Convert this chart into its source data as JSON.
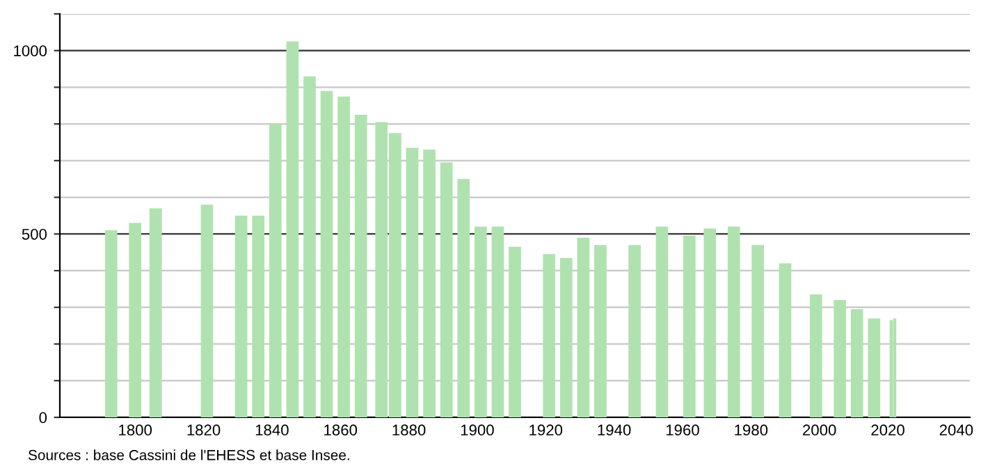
{
  "chart_data": {
    "type": "bar",
    "x": [
      1793,
      1800,
      1806,
      1821,
      1831,
      1836,
      1841,
      1846,
      1851,
      1856,
      1861,
      1866,
      1872,
      1876,
      1881,
      1886,
      1891,
      1896,
      1901,
      1906,
      1911,
      1921,
      1926,
      1931,
      1936,
      1946,
      1954,
      1962,
      1968,
      1975,
      1982,
      1990,
      1999,
      2006,
      2011,
      2016,
      2021,
      2022
    ],
    "values": [
      510,
      530,
      570,
      580,
      550,
      550,
      800,
      1025,
      930,
      890,
      875,
      825,
      805,
      775,
      735,
      730,
      695,
      650,
      520,
      520,
      465,
      445,
      435,
      490,
      470,
      470,
      520,
      495,
      515,
      520,
      470,
      420,
      335,
      320,
      295,
      270,
      265,
      270
    ],
    "color": "#b0e2b0",
    "xlim": [
      1778,
      2044
    ],
    "xticks": [
      1800,
      1820,
      1840,
      1860,
      1880,
      1900,
      1920,
      1940,
      1960,
      1980,
      2000,
      2020,
      2040
    ],
    "ylim": [
      0,
      1100
    ],
    "yticks": [
      0,
      {
        "value": 100,
        "label": null
      },
      {
        "value": 200,
        "label": null
      },
      {
        "value": 300,
        "label": null
      },
      {
        "value": 400,
        "label": null
      },
      500,
      {
        "value": 600,
        "label": null
      },
      {
        "value": 700,
        "label": null
      },
      {
        "value": 800,
        "label": null
      },
      {
        "value": 900,
        "label": null
      },
      1000,
      {
        "value": 1100,
        "label": null
      }
    ],
    "grid": "y",
    "annotations": [
      "Sources : base Cassini de l'EHESS et base Insee."
    ]
  }
}
